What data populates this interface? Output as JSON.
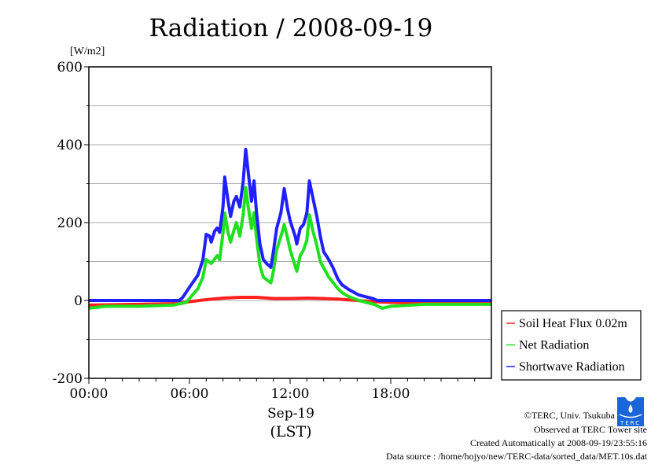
{
  "chart_data": {
    "type": "line",
    "title": "Radiation / 2008-09-19",
    "ylabel": "[W/m2]",
    "ylabel_base": "[W/m",
    "ylabel_sup": "2",
    "ylabel_end": "]",
    "xlabel_date": "Sep-19",
    "xlabel_unit": "(LST)",
    "xlim": [
      0,
      24
    ],
    "ylim": [
      -200,
      600
    ],
    "yticks": [
      600,
      400,
      200,
      0,
      -200
    ],
    "xticks": [
      {
        "h": 0,
        "label": "00:00"
      },
      {
        "h": 6,
        "label": "06:00"
      },
      {
        "h": 12,
        "label": "12:00"
      },
      {
        "h": 18,
        "label": "18:00"
      }
    ],
    "grid": true,
    "legend_position": "outside-right-bottom",
    "series": [
      {
        "name": "Soil Heat Flux 0.02m",
        "color": "#ff2020",
        "points": [
          [
            0,
            -12
          ],
          [
            3,
            -10
          ],
          [
            5,
            -8
          ],
          [
            6,
            -3
          ],
          [
            7,
            2
          ],
          [
            8,
            6
          ],
          [
            9,
            8
          ],
          [
            10,
            8
          ],
          [
            11,
            5
          ],
          [
            12,
            5
          ],
          [
            13,
            6
          ],
          [
            14,
            5
          ],
          [
            15,
            3
          ],
          [
            16,
            0
          ],
          [
            17,
            -3
          ],
          [
            18,
            -5
          ],
          [
            24,
            -8
          ]
        ]
      },
      {
        "name": "Net Radiation",
        "color": "#20e020",
        "points": [
          [
            0,
            -20
          ],
          [
            1,
            -15
          ],
          [
            3,
            -15
          ],
          [
            5,
            -12
          ],
          [
            5.8,
            -5
          ],
          [
            6,
            5
          ],
          [
            6.5,
            30
          ],
          [
            6.8,
            60
          ],
          [
            7,
            105
          ],
          [
            7.3,
            95
          ],
          [
            7.65,
            115
          ],
          [
            7.8,
            105
          ],
          [
            8,
            175
          ],
          [
            8.1,
            225
          ],
          [
            8.3,
            175
          ],
          [
            8.45,
            150
          ],
          [
            8.65,
            180
          ],
          [
            8.8,
            200
          ],
          [
            9,
            165
          ],
          [
            9.2,
            220
          ],
          [
            9.35,
            290
          ],
          [
            9.5,
            240
          ],
          [
            9.7,
            185
          ],
          [
            9.85,
            225
          ],
          [
            10,
            160
          ],
          [
            10.2,
            90
          ],
          [
            10.4,
            60
          ],
          [
            10.85,
            45
          ],
          [
            11,
            75
          ],
          [
            11.2,
            130
          ],
          [
            11.45,
            165
          ],
          [
            11.65,
            195
          ],
          [
            11.85,
            160
          ],
          [
            12,
            130
          ],
          [
            12.4,
            75
          ],
          [
            12.6,
            115
          ],
          [
            12.8,
            130
          ],
          [
            13,
            155
          ],
          [
            13.15,
            220
          ],
          [
            13.35,
            180
          ],
          [
            13.6,
            140
          ],
          [
            13.8,
            100
          ],
          [
            14.3,
            60
          ],
          [
            14.85,
            30
          ],
          [
            15.1,
            20
          ],
          [
            15.5,
            10
          ],
          [
            16.1,
            0
          ],
          [
            17,
            -10
          ],
          [
            17.5,
            -20
          ],
          [
            18,
            -15
          ],
          [
            20,
            -10
          ],
          [
            22,
            -10
          ],
          [
            24,
            -10
          ]
        ]
      },
      {
        "name": "Shortwave Radiation",
        "color": "#2020ff",
        "points": [
          [
            0,
            0
          ],
          [
            5.4,
            0
          ],
          [
            5.6,
            8
          ],
          [
            6,
            34
          ],
          [
            6.5,
            65
          ],
          [
            6.8,
            105
          ],
          [
            7,
            170
          ],
          [
            7.2,
            165
          ],
          [
            7.3,
            150
          ],
          [
            7.5,
            178
          ],
          [
            7.65,
            186
          ],
          [
            7.8,
            175
          ],
          [
            8,
            242
          ],
          [
            8.1,
            317
          ],
          [
            8.3,
            255
          ],
          [
            8.45,
            216
          ],
          [
            8.65,
            255
          ],
          [
            8.8,
            267
          ],
          [
            9,
            240
          ],
          [
            9.2,
            305
          ],
          [
            9.35,
            388
          ],
          [
            9.5,
            330
          ],
          [
            9.7,
            255
          ],
          [
            9.85,
            307
          ],
          [
            10,
            225
          ],
          [
            10.2,
            145
          ],
          [
            10.4,
            105
          ],
          [
            10.6,
            95
          ],
          [
            10.85,
            85
          ],
          [
            11,
            125
          ],
          [
            11.2,
            185
          ],
          [
            11.45,
            225
          ],
          [
            11.65,
            287
          ],
          [
            11.85,
            235
          ],
          [
            12,
            205
          ],
          [
            12.3,
            165
          ],
          [
            12.4,
            145
          ],
          [
            12.6,
            185
          ],
          [
            12.8,
            195
          ],
          [
            13,
            225
          ],
          [
            13.15,
            307
          ],
          [
            13.35,
            265
          ],
          [
            13.6,
            215
          ],
          [
            13.8,
            165
          ],
          [
            14,
            125
          ],
          [
            14.3,
            105
          ],
          [
            14.55,
            85
          ],
          [
            14.85,
            55
          ],
          [
            15.1,
            40
          ],
          [
            15.5,
            28
          ],
          [
            16.1,
            14
          ],
          [
            17,
            4
          ],
          [
            17.2,
            0
          ],
          [
            24,
            0
          ]
        ]
      }
    ]
  },
  "footer": {
    "copyright": "©TERC, Univ. Tsukuba",
    "observed": "Observed at TERC Tower site",
    "created": "Created Automatically at 2008-09-19/23:55:16",
    "source": "Data source : /home/hojyo/new/TERC-data/sorted_data/MET.10s.dat",
    "logo_text": "TERC"
  }
}
